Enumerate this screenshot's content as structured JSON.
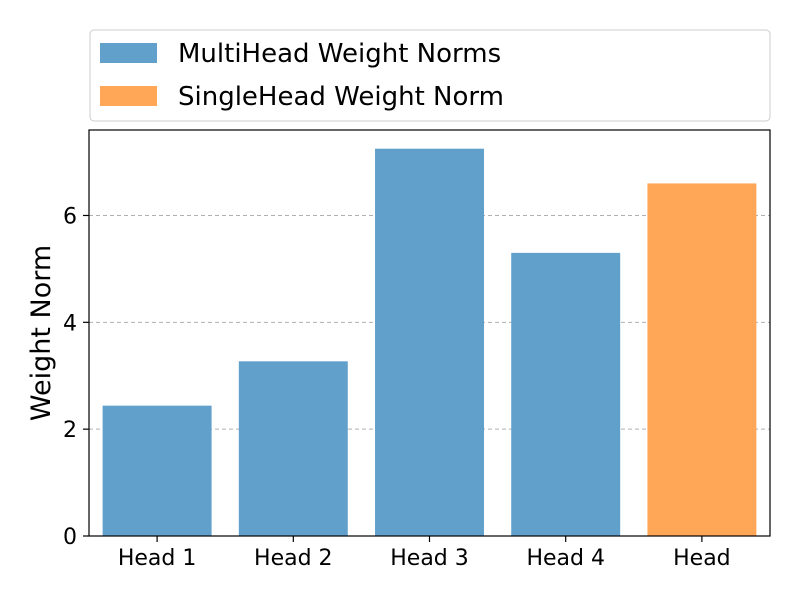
{
  "chart_data": {
    "type": "bar",
    "categories": [
      "Head 1",
      "Head 2",
      "Head 3",
      "Head 4",
      "Head"
    ],
    "series": [
      {
        "name": "MultiHead Weight Norms",
        "color": "#62a0cc",
        "values": [
          2.44,
          3.27,
          7.25,
          5.3,
          null
        ]
      },
      {
        "name": "SingleHead Weight Norm",
        "color": "#ffa657",
        "values": [
          null,
          null,
          null,
          null,
          6.6
        ]
      }
    ],
    "title": "",
    "xlabel": "",
    "ylabel": "Weight Norm",
    "ylim": [
      0,
      7.6
    ],
    "yticks": [
      0,
      2,
      4,
      6
    ],
    "grid": "y-dashed",
    "legend_position": "top"
  }
}
